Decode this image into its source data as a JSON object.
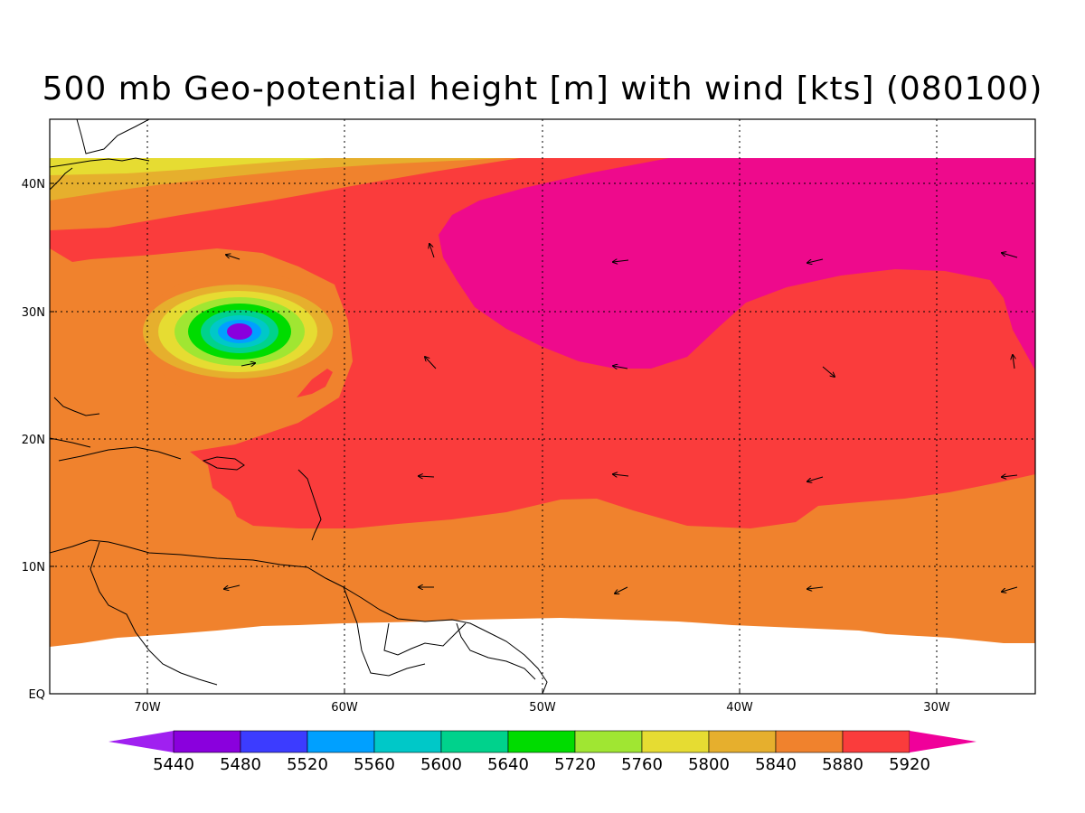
{
  "title": "500 mb Geo-potential height [m] with wind [kts] (080100)",
  "map": {
    "lon_range": [
      -75,
      -25
    ],
    "lat_range": [
      0,
      45
    ],
    "lat_ticks": [
      "EQ",
      "10N",
      "20N",
      "30N",
      "40N"
    ],
    "lon_ticks": [
      "70W",
      "60W",
      "50W",
      "40W",
      "30W"
    ],
    "grid": "dotted"
  },
  "colorbar": {
    "labels": [
      "5440",
      "5480",
      "5520",
      "5560",
      "5600",
      "5640",
      "5720",
      "5760",
      "5800",
      "5840",
      "5880",
      "5920"
    ],
    "colors": [
      "#a020f0",
      "#8a00dd",
      "#3c3cff",
      "#00a0ff",
      "#00c8c8",
      "#00d28c",
      "#00dc00",
      "#a0e632",
      "#e6dc32",
      "#e6af2d",
      "#f0822d",
      "#fa3c3c",
      "#f0009a"
    ]
  },
  "colors": {
    "pink": "#ee0a8c",
    "red": "#fa3c3c",
    "orange": "#f0822d",
    "goldenrod": "#e6af2d",
    "yellow": "#e6dc32",
    "lime": "#a0e632",
    "green": "#00dc00",
    "seagreen": "#00d28c",
    "cyan": "#00c8c8",
    "lightblue": "#00a0ff",
    "blue": "#3c3cff",
    "purple": "#8a00dd"
  },
  "wind_arrow_icon": "arrow-icon"
}
